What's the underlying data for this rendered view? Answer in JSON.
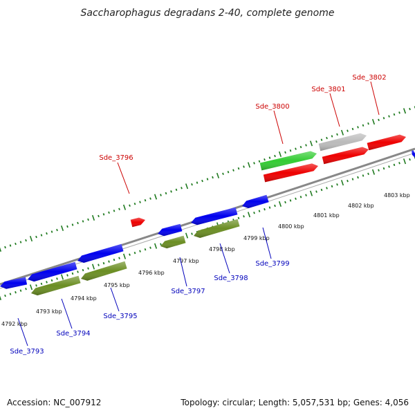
{
  "title": "Saccharophagus degradans 2-40, complete genome",
  "footer": {
    "accession": "Accession: NC_007912",
    "summary": "Topology: circular; Length: 5,057,531 bp; Genes: 4,056"
  },
  "colors": {
    "backbone": "#888888",
    "tick": "#1f7a1f",
    "label_red": "#cc0000",
    "label_blue": "#0000bb",
    "gene_blue": "#0000ee",
    "gene_red": "#ee0000",
    "gene_green": "#33cc33",
    "gene_olive": "#6b8e23",
    "gene_grey": "#bbbbbb"
  },
  "scale_labels": [
    "4792 kbp",
    "4793 kbp",
    "4794 kbp",
    "4795 kbp",
    "4796 kbp",
    "4797 kbp",
    "4798 kbp",
    "4799 kbp",
    "4800 kbp",
    "4801 kbp",
    "4802 kbp",
    "4803 kbp"
  ],
  "gene_labels": [
    {
      "id": "Sde_3793",
      "strand": "reverse"
    },
    {
      "id": "Sde_3794",
      "strand": "reverse"
    },
    {
      "id": "Sde_3795",
      "strand": "reverse"
    },
    {
      "id": "Sde_3796",
      "strand": "forward"
    },
    {
      "id": "Sde_3797",
      "strand": "reverse"
    },
    {
      "id": "Sde_3798",
      "strand": "reverse"
    },
    {
      "id": "Sde_3799",
      "strand": "reverse"
    },
    {
      "id": "Sde_3800",
      "strand": "forward"
    },
    {
      "id": "Sde_3801",
      "strand": "forward"
    },
    {
      "id": "Sde_3802",
      "strand": "forward"
    }
  ]
}
